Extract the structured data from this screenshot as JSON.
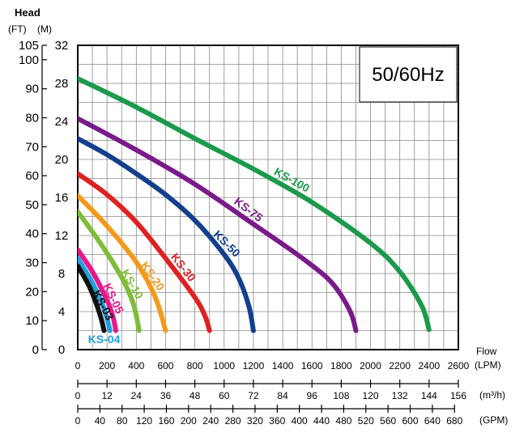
{
  "chart_data": {
    "type": "line",
    "title": "",
    "frequency_label": "50/60Hz",
    "y_axis_title": "Head",
    "y_axis_left": {
      "unit": "(FT)",
      "ticks": [
        0,
        10,
        20,
        30,
        40,
        50,
        60,
        70,
        80,
        90,
        100,
        105
      ]
    },
    "y_axis_right": {
      "unit": "(M)",
      "ticks": [
        0,
        4,
        8,
        12,
        16,
        20,
        24,
        28,
        32
      ],
      "range": [
        0,
        32
      ]
    },
    "x_axis_title": "Flow",
    "x_axis_primary": {
      "unit": "(LPM)",
      "ticks": [
        0,
        200,
        400,
        600,
        800,
        1000,
        1200,
        1400,
        1600,
        1800,
        2000,
        2200,
        2400,
        2600
      ],
      "range": [
        0,
        2600
      ]
    },
    "x_axis_m3h": {
      "unit": "(m³/h)",
      "ticks": [
        0,
        12,
        24,
        36,
        48,
        60,
        72,
        84,
        96,
        108,
        120,
        132,
        144,
        156
      ]
    },
    "x_axis_gpm": {
      "unit": "(GPM)",
      "ticks": [
        0,
        40,
        80,
        120,
        160,
        200,
        240,
        280,
        320,
        360,
        400,
        440,
        480,
        520,
        560,
        600,
        640,
        680
      ]
    },
    "grid": true,
    "series": [
      {
        "name": "KS-100",
        "color": "#1a9a4a",
        "x": [
          0,
          400,
          800,
          1200,
          1600,
          2000,
          2200,
          2350,
          2400
        ],
        "y": [
          28.5,
          25.5,
          22.2,
          19.0,
          15.5,
          11.2,
          8.2,
          4.6,
          2.1
        ]
      },
      {
        "name": "KS-75",
        "color": "#7a1a8a",
        "x": [
          0,
          400,
          800,
          1200,
          1500,
          1700,
          1800,
          1870,
          1900
        ],
        "y": [
          24.3,
          21.0,
          17.4,
          13.2,
          10.0,
          7.6,
          5.7,
          3.7,
          2.0
        ]
      },
      {
        "name": "KS-50",
        "color": "#123f8e",
        "x": [
          0,
          200,
          400,
          600,
          800,
          1000,
          1100,
          1170,
          1200
        ],
        "y": [
          22.2,
          20.5,
          18.5,
          16.3,
          13.6,
          10.0,
          7.5,
          4.5,
          2.0
        ]
      },
      {
        "name": "KS-30",
        "color": "#e02020",
        "x": [
          0,
          200,
          400,
          600,
          800,
          870,
          900
        ],
        "y": [
          18.5,
          16.3,
          13.4,
          9.6,
          5.5,
          3.5,
          2.0
        ]
      },
      {
        "name": "KS-20",
        "color": "#f39a1a",
        "x": [
          0,
          200,
          400,
          530,
          600
        ],
        "y": [
          16.2,
          13.0,
          9.2,
          5.5,
          2.0
        ]
      },
      {
        "name": "KS-10",
        "color": "#7fbd3a",
        "x": [
          0,
          150,
          300,
          380,
          420
        ],
        "y": [
          14.5,
          11.3,
          7.6,
          4.8,
          2.0
        ]
      },
      {
        "name": "KS-05",
        "color": "#e8178a",
        "x": [
          0,
          100,
          200,
          240,
          260
        ],
        "y": [
          10.5,
          8.2,
          5.2,
          3.5,
          2.0
        ]
      },
      {
        "name": "KS-04",
        "color": "#1ea1e0",
        "x": [
          0,
          100,
          180,
          220
        ],
        "y": [
          9.6,
          7.0,
          4.3,
          2.0
        ]
      },
      {
        "name": "KS-03",
        "color": "#111111",
        "x": [
          0,
          80,
          150,
          180
        ],
        "y": [
          8.8,
          6.6,
          3.8,
          2.0
        ]
      }
    ]
  }
}
